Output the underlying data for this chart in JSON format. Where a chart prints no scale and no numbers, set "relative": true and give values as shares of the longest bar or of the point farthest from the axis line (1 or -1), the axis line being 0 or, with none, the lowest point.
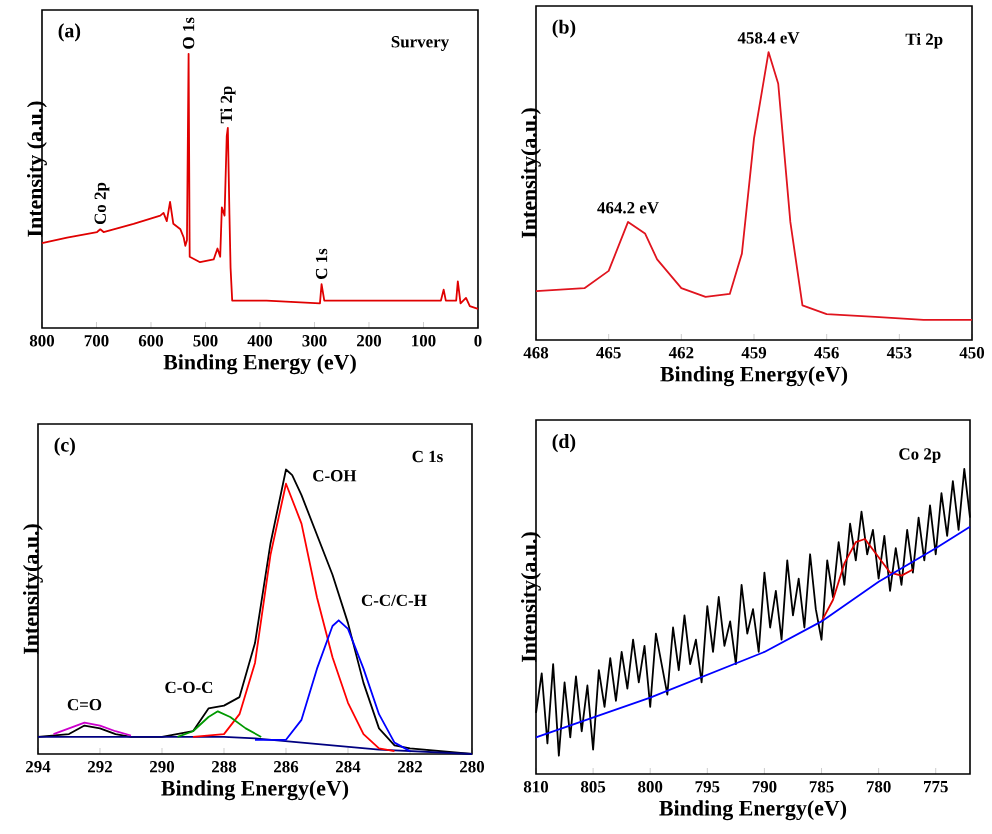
{
  "chart_data": [
    {
      "type": "line",
      "relative": true,
      "xlabel": "Binding Energy (eV)",
      "ylabel": "Intensity (a.u.)",
      "xlim": [
        800,
        0
      ],
      "xticks": [
        800,
        700,
        600,
        500,
        400,
        300,
        200,
        100,
        0
      ],
      "annotations": [
        "(a)",
        "Survery",
        {
          "text": "Co 2p",
          "x": 690,
          "y": 0.36
        },
        {
          "text": "O 1s",
          "x": 531,
          "y": 1.0
        },
        {
          "text": "Ti 2p",
          "x": 459,
          "y": 0.73
        },
        {
          "text": "C 1s",
          "x": 287,
          "y": 0.16
        }
      ],
      "series": [
        {
          "color": "#e00000",
          "x": [
            800,
            754,
            699,
            693,
            687,
            632,
            583,
            577,
            571,
            565,
            559,
            546,
            540,
            537,
            534,
            531,
            529,
            510,
            485,
            478,
            473,
            470,
            465,
            461,
            459,
            456,
            454,
            451,
            388,
            290,
            287,
            282,
            144,
            68,
            63,
            59,
            40,
            37,
            32,
            22,
            15,
            0
          ],
          "values": [
            0.31,
            0.33,
            0.35,
            0.36,
            0.35,
            0.38,
            0.41,
            0.42,
            0.39,
            0.46,
            0.38,
            0.36,
            0.33,
            0.3,
            0.32,
            1.0,
            0.26,
            0.24,
            0.25,
            0.29,
            0.26,
            0.44,
            0.41,
            0.7,
            0.73,
            0.41,
            0.22,
            0.1,
            0.1,
            0.09,
            0.16,
            0.1,
            0.1,
            0.1,
            0.14,
            0.1,
            0.1,
            0.17,
            0.09,
            0.11,
            0.08,
            0.07
          ]
        }
      ]
    },
    {
      "type": "line",
      "relative": true,
      "xlabel": "Binding Energy(eV)",
      "ylabel": "Intensity(a.u.)",
      "xlim": [
        468,
        450
      ],
      "xticks": [
        468,
        465,
        462,
        459,
        456,
        453,
        450
      ],
      "annotations": [
        "(b)",
        "Ti 2p",
        {
          "text": "458.4 eV",
          "x": 458.4,
          "y": 1.0
        },
        {
          "text": "464.2 eV",
          "x": 464.2,
          "y": 0.41
        }
      ],
      "series": [
        {
          "color": "#e0141e",
          "x": [
            468,
            466,
            465,
            464.2,
            463.5,
            463,
            462,
            461,
            460,
            459.5,
            459,
            458.4,
            458,
            457.5,
            457,
            456,
            454,
            452,
            450
          ],
          "values": [
            0.17,
            0.18,
            0.24,
            0.41,
            0.37,
            0.28,
            0.18,
            0.15,
            0.16,
            0.3,
            0.7,
            1.0,
            0.89,
            0.41,
            0.12,
            0.09,
            0.08,
            0.07,
            0.07
          ]
        }
      ]
    },
    {
      "type": "line",
      "relative": true,
      "xlabel": "Binding Energy(eV)",
      "ylabel": "Intensity(a.u.)",
      "xlim": [
        294,
        280
      ],
      "xticks": [
        294,
        292,
        290,
        288,
        286,
        284,
        282,
        280
      ],
      "annotations": [
        "(c)",
        "C 1s"
      ],
      "series": [
        {
          "color": "#000000",
          "x": [
            294,
            293,
            292.5,
            292,
            291.5,
            291,
            290,
            289,
            288.5,
            288,
            287.5,
            287,
            286.5,
            286,
            285.8,
            285.5,
            285,
            284.5,
            284,
            283.5,
            283,
            282.5,
            282,
            281,
            280
          ],
          "values": [
            0.06,
            0.07,
            0.1,
            0.09,
            0.07,
            0.06,
            0.06,
            0.08,
            0.16,
            0.17,
            0.2,
            0.39,
            0.74,
            1.0,
            0.98,
            0.91,
            0.77,
            0.63,
            0.46,
            0.25,
            0.09,
            0.03,
            0.02,
            0.01,
            0
          ]
        },
        {
          "color": "#000080",
          "x": [
            294,
            290,
            288,
            287,
            286,
            285,
            284,
            283,
            282,
            280
          ],
          "values": [
            0.06,
            0.06,
            0.06,
            0.055,
            0.045,
            0.035,
            0.025,
            0.015,
            0.01,
            0
          ]
        },
        {
          "name": "C-OH",
          "color": "#ff0000",
          "x": [
            289,
            288,
            287.5,
            287,
            286.5,
            286,
            285.5,
            285,
            284.5,
            284,
            283.5,
            283,
            282.5
          ],
          "values": [
            0.06,
            0.07,
            0.14,
            0.32,
            0.7,
            0.95,
            0.81,
            0.55,
            0.34,
            0.18,
            0.07,
            0.02,
            0.01
          ]
        },
        {
          "name": "C-C/C-H",
          "color": "#0000ff",
          "x": [
            287,
            286,
            285.5,
            285,
            284.5,
            284.3,
            284,
            283.5,
            283,
            282.5,
            282
          ],
          "values": [
            0.05,
            0.05,
            0.12,
            0.3,
            0.45,
            0.47,
            0.44,
            0.3,
            0.14,
            0.04,
            0.01
          ]
        },
        {
          "name": "C-O-C",
          "color": "#009900",
          "x": [
            289.5,
            289,
            288.5,
            288.2,
            287.8,
            287.3,
            286.8
          ],
          "values": [
            0.06,
            0.08,
            0.13,
            0.15,
            0.13,
            0.09,
            0.06
          ]
        },
        {
          "name": "C=O",
          "color": "#cc00cc",
          "x": [
            293.5,
            293,
            292.5,
            292,
            291.5,
            291
          ],
          "values": [
            0.07,
            0.09,
            0.11,
            0.1,
            0.08,
            0.065
          ]
        }
      ]
    },
    {
      "type": "line",
      "relative": true,
      "xlabel": "Binding Energy(eV)",
      "ylabel": "Intensity(a.u.)",
      "xlim": [
        810,
        772
      ],
      "xticks": [
        810,
        805,
        800,
        795,
        790,
        785,
        780,
        775
      ],
      "annotations": [
        "(d)",
        "Co 2p"
      ],
      "series": [
        {
          "color": "#000000",
          "x": [
            810,
            809.5,
            809,
            808.5,
            808,
            807.5,
            807,
            806.5,
            806,
            805.5,
            805,
            804.5,
            804,
            803.5,
            803,
            802.5,
            802,
            801.5,
            801,
            800.5,
            800,
            799.5,
            799,
            798.5,
            798,
            797.5,
            797,
            796.5,
            796,
            795.5,
            795,
            794.5,
            794,
            793.5,
            793,
            792.5,
            792,
            791.5,
            791,
            790.5,
            790,
            789.5,
            789,
            788.5,
            788,
            787.5,
            787,
            786.5,
            786,
            785.5,
            785,
            784.5,
            784,
            783.5,
            783,
            782.5,
            782,
            781.5,
            781,
            780.5,
            780,
            779.5,
            779,
            778.5,
            778,
            777.5,
            777,
            776.5,
            776,
            775.5,
            775,
            774.5,
            774,
            773.5,
            773,
            772.5,
            772
          ],
          "values": [
            0.2,
            0.33,
            0.1,
            0.36,
            0.06,
            0.3,
            0.12,
            0.32,
            0.14,
            0.29,
            0.08,
            0.34,
            0.22,
            0.38,
            0.24,
            0.4,
            0.28,
            0.44,
            0.3,
            0.42,
            0.22,
            0.46,
            0.36,
            0.26,
            0.48,
            0.34,
            0.52,
            0.36,
            0.44,
            0.3,
            0.55,
            0.4,
            0.58,
            0.42,
            0.5,
            0.36,
            0.62,
            0.46,
            0.54,
            0.4,
            0.66,
            0.48,
            0.6,
            0.44,
            0.7,
            0.52,
            0.64,
            0.48,
            0.72,
            0.54,
            0.44,
            0.7,
            0.58,
            0.76,
            0.62,
            0.82,
            0.7,
            0.86,
            0.72,
            0.8,
            0.64,
            0.78,
            0.6,
            0.74,
            0.62,
            0.8,
            0.66,
            0.84,
            0.7,
            0.88,
            0.72,
            0.92,
            0.78,
            0.96,
            0.8,
            1.0,
            0.84
          ]
        },
        {
          "color": "#dd0000",
          "x": [
            785,
            784,
            783,
            782,
            781.2,
            780,
            779,
            778,
            777
          ],
          "values": [
            0.5,
            0.57,
            0.69,
            0.76,
            0.77,
            0.71,
            0.66,
            0.65,
            0.67
          ]
        },
        {
          "color": "#0000ff",
          "x": [
            810,
            800,
            790,
            785,
            780,
            775,
            772
          ],
          "values": [
            0.12,
            0.25,
            0.4,
            0.5,
            0.63,
            0.74,
            0.81
          ]
        }
      ]
    }
  ]
}
